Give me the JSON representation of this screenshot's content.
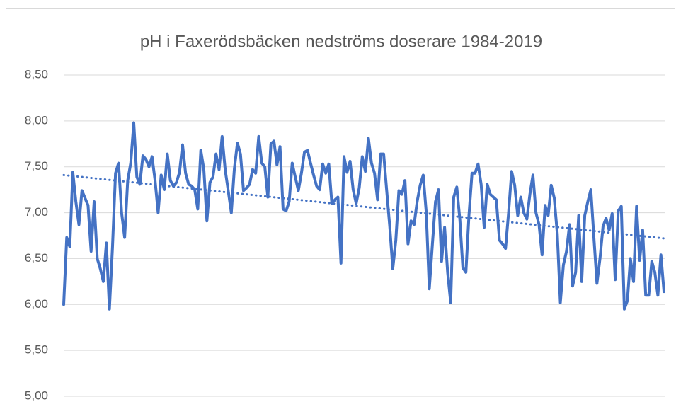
{
  "chart_data": {
    "type": "line",
    "title": "pH i Faxerödsbäcken nedströms doserare 1984-2019",
    "ylim": [
      5,
      8.5
    ],
    "yticks": [
      {
        "value": 5,
        "label": "5,00"
      },
      {
        "value": 5.5,
        "label": "5,50"
      },
      {
        "value": 6,
        "label": "6,00"
      },
      {
        "value": 6.5,
        "label": "6,50"
      },
      {
        "value": 7,
        "label": "7,00"
      },
      {
        "value": 7.5,
        "label": "7,50"
      },
      {
        "value": 8,
        "label": "8,00"
      },
      {
        "value": 8.5,
        "label": "8,50"
      }
    ],
    "grid": true,
    "series": [
      {
        "color": "#4472c4",
        "values": [
          6.0,
          6.73,
          6.63,
          7.44,
          7.12,
          6.87,
          7.24,
          7.16,
          7.08,
          6.58,
          7.12,
          6.5,
          6.39,
          6.25,
          6.67,
          5.95,
          6.62,
          7.43,
          7.54,
          7.0,
          6.73,
          7.35,
          7.54,
          7.98,
          7.39,
          7.31,
          7.62,
          7.58,
          7.5,
          7.61,
          7.35,
          7.0,
          7.41,
          7.25,
          7.64,
          7.35,
          7.29,
          7.33,
          7.44,
          7.74,
          7.43,
          7.31,
          7.29,
          7.25,
          7.04,
          7.68,
          7.47,
          6.91,
          7.33,
          7.39,
          7.64,
          7.47,
          7.83,
          7.47,
          7.24,
          7.0,
          7.48,
          7.76,
          7.64,
          7.24,
          7.27,
          7.31,
          7.47,
          7.43,
          7.83,
          7.54,
          7.5,
          7.17,
          7.75,
          7.78,
          7.52,
          7.72,
          7.04,
          7.02,
          7.12,
          7.54,
          7.39,
          7.24,
          7.43,
          7.66,
          7.68,
          7.54,
          7.41,
          7.29,
          7.25,
          7.53,
          7.43,
          7.53,
          7.1,
          7.14,
          7.17,
          6.45,
          7.61,
          7.44,
          7.56,
          7.25,
          7.1,
          7.27,
          7.61,
          7.45,
          7.81,
          7.54,
          7.43,
          7.14,
          7.64,
          7.64,
          7.24,
          6.85,
          6.39,
          6.7,
          7.24,
          7.2,
          7.35,
          6.66,
          6.91,
          6.87,
          7.12,
          7.3,
          7.41,
          7.0,
          6.17,
          6.66,
          7.12,
          7.25,
          6.47,
          6.84,
          6.35,
          6.02,
          7.17,
          7.28,
          6.93,
          6.4,
          6.35,
          6.97,
          7.43,
          7.43,
          7.53,
          7.31,
          6.84,
          7.31,
          7.2,
          7.17,
          7.14,
          6.7,
          6.66,
          6.61,
          7.0,
          7.45,
          7.3,
          6.97,
          7.17,
          7.0,
          6.93,
          7.2,
          7.41,
          7.0,
          6.87,
          6.54,
          7.08,
          6.97,
          7.3,
          7.16,
          6.77,
          6.02,
          6.43,
          6.58,
          6.87,
          6.2,
          6.35,
          6.97,
          6.25,
          6.97,
          7.12,
          7.25,
          6.73,
          6.23,
          6.5,
          6.85,
          6.94,
          6.81,
          6.99,
          6.27,
          7.02,
          7.07,
          5.95,
          6.04,
          6.5,
          6.25,
          7.07,
          6.48,
          6.81,
          6.1,
          6.1,
          6.47,
          6.35,
          6.1,
          6.54,
          6.14
        ]
      }
    ],
    "trendline": [
      7.41,
      6.72
    ]
  }
}
